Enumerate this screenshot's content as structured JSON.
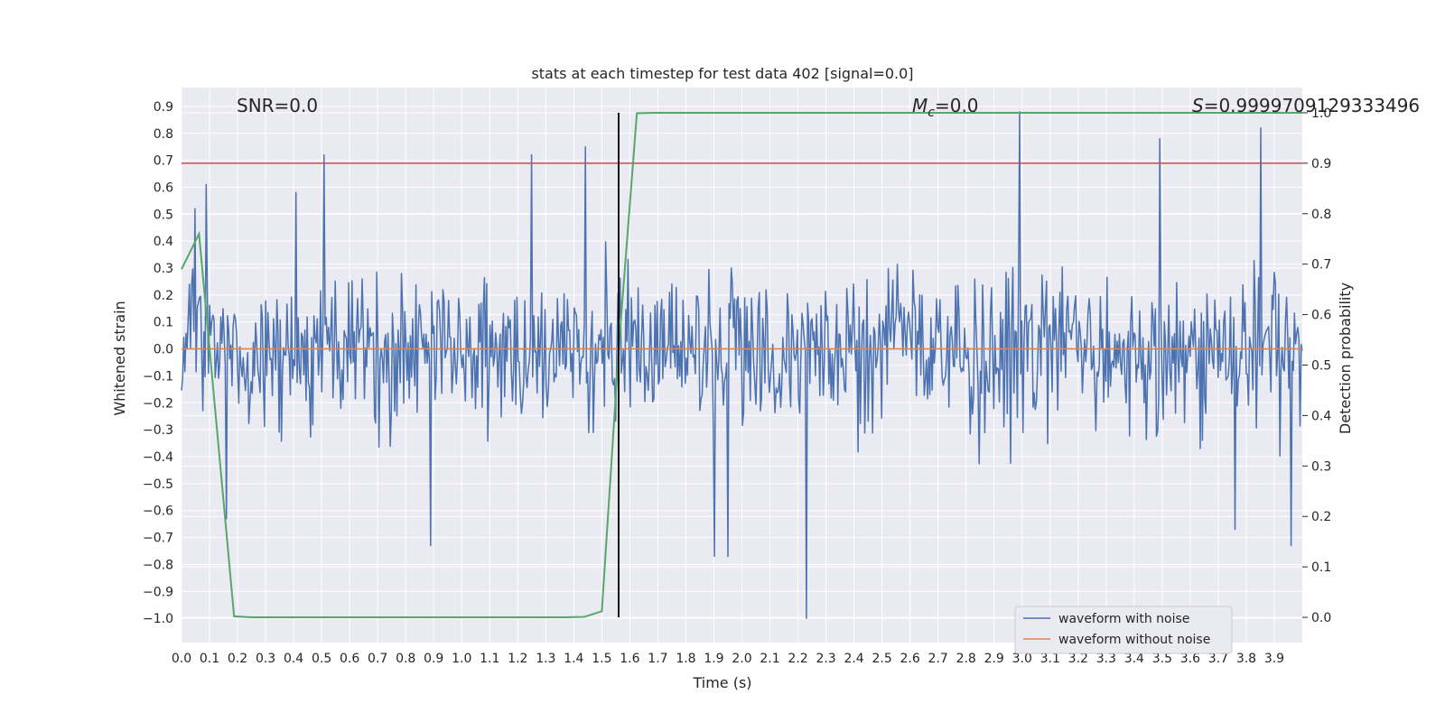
{
  "chart_data": {
    "type": "line",
    "title": "stats at each timestep for test data 402 [signal=0.0]",
    "xlabel": "Time (s)",
    "ylabel": "Whitened strain",
    "ylabel_right": "Detection probability",
    "xlim": [
      0.0,
      4.0
    ],
    "ylim": [
      -1.09,
      0.97
    ],
    "ylim_right": [
      -0.05,
      1.05
    ],
    "grid": true,
    "x_ticks": [
      "0.0",
      "0.1",
      "0.2",
      "0.3",
      "0.4",
      "0.5",
      "0.6",
      "0.7",
      "0.8",
      "0.9",
      "1.0",
      "1.1",
      "1.2",
      "1.3",
      "1.4",
      "1.5",
      "1.6",
      "1.7",
      "1.8",
      "1.9",
      "2.0",
      "2.1",
      "2.2",
      "2.3",
      "2.4",
      "2.5",
      "2.6",
      "2.7",
      "2.8",
      "2.9",
      "3.0",
      "3.1",
      "3.2",
      "3.3",
      "3.4",
      "3.5",
      "3.6",
      "3.7",
      "3.8",
      "3.9"
    ],
    "y_ticks": [
      "0.9",
      "0.8",
      "0.7",
      "0.6",
      "0.5",
      "0.4",
      "0.3",
      "0.2",
      "0.1",
      "0.0",
      "−0.1",
      "−0.2",
      "−0.3",
      "−0.4",
      "−0.5",
      "−0.6",
      "−0.7",
      "−0.8",
      "−0.9",
      "−1.0"
    ],
    "y_ticks_right": [
      "1.0",
      "0.9",
      "0.8",
      "0.7",
      "0.6",
      "0.5",
      "0.4",
      "0.3",
      "0.2",
      "0.1",
      "0.0"
    ],
    "annotations": {
      "snr": "SNR=0.0",
      "mc_symbol": "M",
      "mc_sub": "c",
      "mc_value": "=0.0",
      "s": "S=0.9999709129333496"
    },
    "threshold_right": 0.9,
    "vertical_marker_x": 1.56,
    "detection_probability": {
      "x": [
        0.0,
        0.0625,
        0.1875,
        0.25,
        0.3125,
        0.375,
        0.4375,
        0.5,
        0.5625,
        0.625,
        0.6875,
        0.75,
        0.8125,
        0.875,
        0.9375,
        1.0,
        1.0625,
        1.125,
        1.1875,
        1.25,
        1.3125,
        1.375,
        1.4375,
        1.5,
        1.5625,
        1.625,
        1.6875,
        1.75,
        1.8125,
        1.875,
        2.0,
        2.25,
        2.5,
        2.75,
        3.0,
        3.25,
        3.5,
        3.75,
        4.0
      ],
      "y": [
        0.69,
        0.76,
        0.002,
        0.0,
        0.0,
        0.0,
        0.0,
        0.0,
        0.0,
        0.0,
        0.0,
        0.0,
        0.0,
        0.0,
        0.0,
        0.0,
        0.0,
        0.0,
        0.0,
        0.0,
        0.0,
        0.0,
        0.001,
        0.012,
        0.55,
        0.999,
        1.0,
        1.0,
        1.0,
        1.0,
        1.0,
        1.0,
        1.0,
        1.0,
        1.0,
        1.0,
        1.0,
        1.0,
        1.0
      ]
    },
    "waveform_without_noise": {
      "x": [
        0.0,
        4.0
      ],
      "y": [
        0.0,
        0.0
      ]
    },
    "waveform_with_noise_summary": {
      "samples": 1000,
      "typical_amplitude": 0.25,
      "spikes": [
        {
          "x": 0.05,
          "y": 0.52
        },
        {
          "x": 0.09,
          "y": 0.61
        },
        {
          "x": 0.16,
          "y": -0.63
        },
        {
          "x": 0.41,
          "y": 0.58
        },
        {
          "x": 0.51,
          "y": 0.72
        },
        {
          "x": 0.89,
          "y": -0.73
        },
        {
          "x": 1.25,
          "y": 0.72
        },
        {
          "x": 1.44,
          "y": 0.75
        },
        {
          "x": 1.9,
          "y": -0.77
        },
        {
          "x": 1.95,
          "y": -0.77
        },
        {
          "x": 2.23,
          "y": -1.0
        },
        {
          "x": 2.99,
          "y": 0.88
        },
        {
          "x": 3.49,
          "y": 0.78
        },
        {
          "x": 3.76,
          "y": -0.67
        },
        {
          "x": 3.85,
          "y": 0.82
        },
        {
          "x": 3.96,
          "y": -0.73
        }
      ]
    },
    "series": [
      {
        "name": "waveform with noise",
        "color": "#4c72b0"
      },
      {
        "name": "waveform without noise",
        "color": "#dd8452"
      }
    ],
    "colors": {
      "detection_probability": "#55a868",
      "threshold": "#c44e52",
      "marker": "#000000",
      "plot_background": "#eaeaf2",
      "grid": "#ffffff"
    },
    "legend_position": "lower-right"
  }
}
